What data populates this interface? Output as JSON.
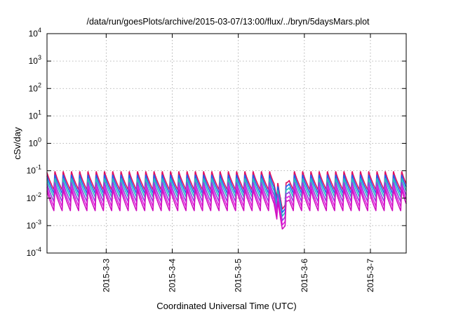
{
  "chart_data": {
    "type": "line",
    "title": "/data/run/goesPlots/archive/2015-03-07/13:00/flux/../bryn/5daysMars.plot",
    "xlabel": "Coordinated Universal Time (UTC)",
    "ylabel": "cSv/day",
    "yscale": "log",
    "ylim": [
      0.0001,
      10000
    ],
    "xlim": [
      "2015-03-02T02:30",
      "2015-03-07T13:00"
    ],
    "grid": true,
    "y_ticks": [
      {
        "base": "10",
        "exp": "-4"
      },
      {
        "base": "10",
        "exp": "-3"
      },
      {
        "base": "10",
        "exp": "-2"
      },
      {
        "base": "10",
        "exp": "-1"
      },
      {
        "base": "10",
        "exp": "0"
      },
      {
        "base": "10",
        "exp": "1"
      },
      {
        "base": "10",
        "exp": "2"
      },
      {
        "base": "10",
        "exp": "3"
      },
      {
        "base": "10",
        "exp": "4"
      }
    ],
    "x_ticks": [
      {
        "value": "2015-03-03",
        "label": "2015-3-3"
      },
      {
        "value": "2015-03-04",
        "label": "2015-3-4"
      },
      {
        "value": "2015-03-05",
        "label": "2015-3-5"
      },
      {
        "value": "2015-03-06",
        "label": "2015-3-6"
      },
      {
        "value": "2015-03-07",
        "label": "2015-3-7"
      }
    ],
    "pattern": {
      "cycle_hours": 3,
      "peak_values": [
        0.1,
        0.075,
        0.055,
        0.04,
        0.03,
        0.022
      ],
      "trough_values": [
        0.02,
        0.015,
        0.011,
        0.0075,
        0.005,
        0.0035
      ],
      "dip": {
        "start": "2015-03-05T13:00",
        "minimum": "2015-03-05T16:00",
        "end": "2015-03-05T18:30",
        "min_factor": 0.12
      }
    },
    "series": [
      {
        "color": "#e01060"
      },
      {
        "color": "#2060f0"
      },
      {
        "color": "#20c0c0"
      },
      {
        "color": "#9040e0"
      },
      {
        "color": "#e020e0"
      },
      {
        "color": "#d010c0"
      }
    ]
  }
}
